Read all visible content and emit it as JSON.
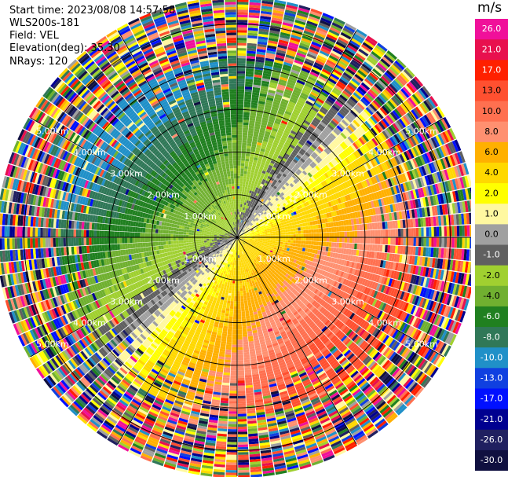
{
  "header": {
    "start_time": "Start time: 2023/08/08 14:57:58",
    "instrument": "WLS200s-181",
    "field": "Field: VEL",
    "elevation": "Elevation(deg): 35.30",
    "nrays": "NRays: 120"
  },
  "chart_data": {
    "type": "heatmap",
    "projection": "polar-ppi",
    "field": "VEL",
    "units": "m/s",
    "n_rays": 120,
    "range_rings_km": [
      1.0,
      2.0,
      3.0,
      4.0,
      5.0
    ],
    "ring_labels": [
      "1.00km",
      "2.00km",
      "3.00km",
      "4.00km",
      "5.00km"
    ],
    "max_range_km": 5.6,
    "colorbar": {
      "title": "m/s",
      "ticks": [
        "26.0",
        "21.0",
        "17.0",
        "13.0",
        "10.0",
        "8.0",
        "6.0",
        "4.0",
        "2.0",
        "1.0",
        "0.0",
        "-1.0",
        "-2.0",
        "-4.0",
        "-6.0",
        "-8.0",
        "-10.0",
        "-13.0",
        "-17.0",
        "-21.0",
        "-26.0",
        "-30.0"
      ],
      "colors": [
        "#f0109a",
        "#e8104e",
        "#ff2000",
        "#ff5030",
        "#ff7050",
        "#ff9070",
        "#ffb000",
        "#ffd800",
        "#ffff00",
        "#fff8a0",
        "#a0a0a0",
        "#606060",
        "#a0d030",
        "#70b030",
        "#208020",
        "#307858",
        "#2090c8",
        "#1040e0",
        "#0010ff",
        "#000090",
        "#202060",
        "#101040"
      ]
    }
  }
}
